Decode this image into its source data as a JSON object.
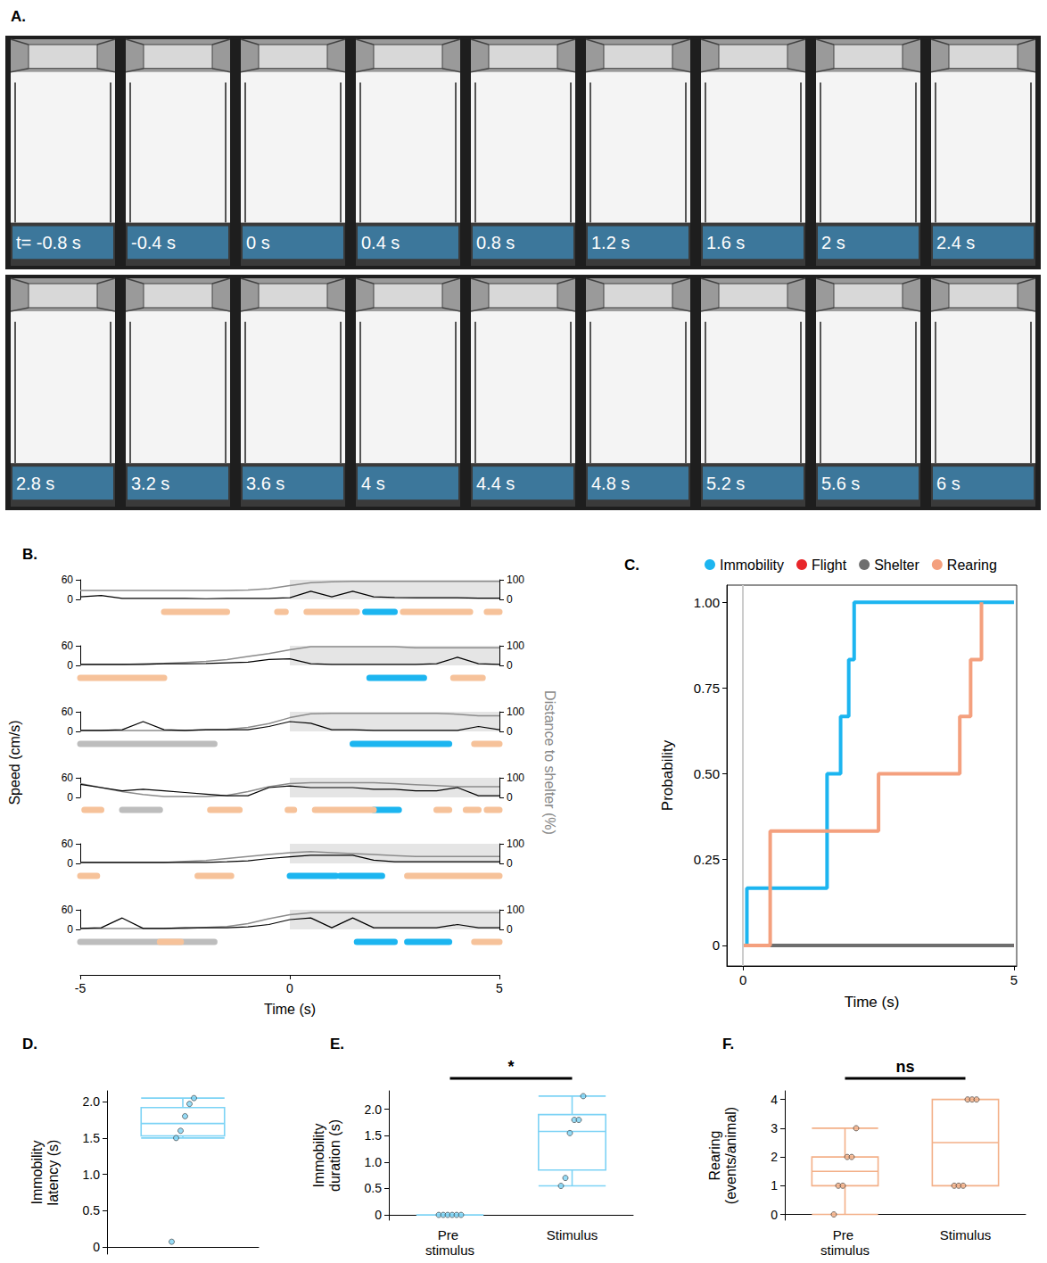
{
  "panel_a": {
    "title": "A.",
    "frames": [
      "t= -0.8 s",
      "-0.4 s",
      "0 s",
      "0.4 s",
      "0.8 s",
      "1.2 s",
      "1.6 s",
      "2 s",
      "2.4 s",
      "2.8 s",
      "3.2 s",
      "3.6 s",
      "4 s",
      "4.4 s",
      "4.8 s",
      "5.2 s",
      "5.6 s",
      "6 s"
    ]
  },
  "chart_data": [
    {
      "type": "line",
      "title": "B.",
      "x_label": "Time (s)",
      "y_label": "Speed (cm/s)",
      "y2_label": "Distance to shelter (%)",
      "x": [
        -5,
        -4.5,
        -4,
        -3.5,
        -3,
        -2.5,
        -2,
        -1.5,
        -1,
        -0.5,
        0,
        0.5,
        1,
        1.5,
        2,
        2.5,
        3,
        3.5,
        4,
        4.5,
        5
      ],
      "xlim": [
        -5,
        5
      ],
      "xticks": [
        -5,
        0,
        5
      ],
      "ylim": [
        0,
        60
      ],
      "yticks": [
        0,
        60
      ],
      "y2lim": [
        0,
        100
      ],
      "y2ticks": [
        0,
        100
      ],
      "stimulus": [
        0,
        5
      ],
      "behaviors": [
        {
          "name": "Shelter",
          "color": "#bdbdbd"
        },
        {
          "name": "Immobility",
          "color": "#1cb5f0"
        },
        {
          "name": "Rearing",
          "color": "#f6c29a"
        }
      ],
      "rows": [
        {
          "series": [
            {
              "name": "Speed (cm/s)",
              "color": "#000000",
              "values": [
                8,
                12,
                3,
                3,
                3,
                3,
                2,
                3,
                3,
                3,
                5,
                25,
                8,
                25,
                8,
                6,
                5,
                5,
                5,
                4,
                4
              ]
            },
            {
              "name": "Distance to shelter (%)",
              "color": "#8c8c8c",
              "axis": "y2",
              "values": [
                45,
                45,
                45,
                45,
                45,
                45,
                45,
                46,
                48,
                55,
                70,
                85,
                90,
                92,
                92,
                92,
                92,
                92,
                92,
                92,
                92
              ]
            }
          ],
          "segments": [
            {
              "behavior": "Rearing",
              "start": -3,
              "end": -1.5
            },
            {
              "behavior": "Rearing",
              "start": -0.3,
              "end": -0.1
            },
            {
              "behavior": "Rearing",
              "start": 0.4,
              "end": 1.6
            },
            {
              "behavior": "Immobility",
              "start": 1.8,
              "end": 2.5
            },
            {
              "behavior": "Rearing",
              "start": 2.7,
              "end": 4.3
            },
            {
              "behavior": "Rearing",
              "start": 4.7,
              "end": 5
            }
          ]
        },
        {
          "series": [
            {
              "name": "Speed (cm/s)",
              "color": "#000000",
              "values": [
                3,
                3,
                3,
                3,
                5,
                5,
                6,
                8,
                10,
                18,
                20,
                5,
                3,
                3,
                3,
                3,
                3,
                5,
                25,
                5,
                3
              ]
            },
            {
              "name": "Distance to shelter (%)",
              "color": "#8c8c8c",
              "axis": "y2",
              "values": [
                5,
                5,
                5,
                8,
                10,
                15,
                20,
                30,
                45,
                60,
                80,
                95,
                95,
                95,
                95,
                95,
                90,
                90,
                90,
                90,
                90
              ]
            }
          ],
          "segments": [
            {
              "behavior": "Rearing",
              "start": -5,
              "end": -3
            },
            {
              "behavior": "Immobility",
              "start": 1.9,
              "end": 3.2
            },
            {
              "behavior": "Rearing",
              "start": 3.9,
              "end": 4.6
            }
          ]
        },
        {
          "series": [
            {
              "name": "Speed (cm/s)",
              "color": "#000000",
              "values": [
                3,
                3,
                5,
                30,
                5,
                3,
                5,
                5,
                5,
                15,
                30,
                25,
                5,
                5,
                3,
                3,
                3,
                3,
                3,
                15,
                5
              ]
            },
            {
              "name": "Distance to shelter (%)",
              "color": "#8c8c8c",
              "axis": "y2",
              "values": [
                5,
                5,
                5,
                5,
                5,
                5,
                8,
                10,
                20,
                40,
                70,
                90,
                92,
                92,
                92,
                92,
                92,
                92,
                88,
                80,
                80
              ]
            }
          ],
          "segments": [
            {
              "behavior": "Shelter",
              "start": -5,
              "end": -1.8
            },
            {
              "behavior": "Immobility",
              "start": 1.5,
              "end": 3.8
            },
            {
              "behavior": "Rearing",
              "start": 4.4,
              "end": 5
            }
          ]
        },
        {
          "series": [
            {
              "name": "Speed (cm/s)",
              "color": "#000000",
              "values": [
                40,
                30,
                20,
                25,
                20,
                15,
                10,
                5,
                5,
                30,
                35,
                30,
                30,
                30,
                25,
                25,
                20,
                20,
                30,
                5,
                5
              ]
            },
            {
              "name": "Distance to shelter (%)",
              "color": "#8c8c8c",
              "axis": "y2",
              "values": [
                70,
                50,
                30,
                15,
                5,
                5,
                5,
                10,
                30,
                55,
                70,
                75,
                75,
                75,
                75,
                70,
                65,
                60,
                55,
                55,
                55
              ]
            }
          ],
          "segments": [
            {
              "behavior": "Rearing",
              "start": -4.9,
              "end": -4.5
            },
            {
              "behavior": "Shelter",
              "start": -4,
              "end": -3.1
            },
            {
              "behavior": "Rearing",
              "start": -1.9,
              "end": -1.2
            },
            {
              "behavior": "Rearing",
              "start": -0.05,
              "end": 0.1
            },
            {
              "behavior": "Rearing",
              "start": 0.6,
              "end": 2
            },
            {
              "behavior": "Immobility",
              "start": 2,
              "end": 2.6
            },
            {
              "behavior": "Rearing",
              "start": 3.5,
              "end": 3.8
            },
            {
              "behavior": "Rearing",
              "start": 4.2,
              "end": 4.5
            },
            {
              "behavior": "Rearing",
              "start": 4.7,
              "end": 5
            }
          ]
        },
        {
          "series": [
            {
              "name": "Speed (cm/s)",
              "color": "#000000",
              "values": [
                3,
                3,
                3,
                3,
                3,
                3,
                3,
                5,
                8,
                15,
                20,
                25,
                25,
                25,
                10,
                5,
                5,
                5,
                5,
                5,
                5
              ]
            },
            {
              "name": "Distance to shelter (%)",
              "color": "#8c8c8c",
              "axis": "y2",
              "values": [
                5,
                5,
                5,
                5,
                5,
                10,
                15,
                25,
                35,
                45,
                55,
                60,
                55,
                50,
                45,
                40,
                35,
                35,
                35,
                35,
                35
              ]
            }
          ],
          "segments": [
            {
              "behavior": "Rearing",
              "start": -5,
              "end": -4.6
            },
            {
              "behavior": "Rearing",
              "start": -2.2,
              "end": -1.4
            },
            {
              "behavior": "Immobility",
              "start": 0,
              "end": 1.1
            },
            {
              "behavior": "Immobility",
              "start": 1.2,
              "end": 2.2
            },
            {
              "behavior": "Rearing",
              "start": 2.8,
              "end": 5
            }
          ]
        },
        {
          "series": [
            {
              "name": "Speed (cm/s)",
              "color": "#000000",
              "values": [
                3,
                5,
                35,
                3,
                3,
                5,
                5,
                5,
                8,
                15,
                30,
                35,
                5,
                35,
                5,
                5,
                5,
                5,
                15,
                5,
                5
              ]
            },
            {
              "name": "Distance to shelter (%)",
              "color": "#8c8c8c",
              "axis": "y2",
              "values": [
                5,
                5,
                5,
                5,
                5,
                5,
                10,
                15,
                30,
                55,
                75,
                85,
                85,
                85,
                85,
                85,
                85,
                85,
                85,
                85,
                85
              ]
            }
          ],
          "segments": [
            {
              "behavior": "Shelter",
              "start": -5,
              "end": -1.8
            },
            {
              "behavior": "Rearing",
              "start": -3.1,
              "end": -2.6
            },
            {
              "behavior": "Immobility",
              "start": 1.6,
              "end": 2.5
            },
            {
              "behavior": "Immobility",
              "start": 2.8,
              "end": 3.8
            },
            {
              "behavior": "Rearing",
              "start": 4.4,
              "end": 5
            }
          ]
        }
      ]
    },
    {
      "type": "step",
      "title": "C.",
      "x_label": "Time (s)",
      "y_label": "Probability",
      "xlim": [
        -0.3,
        5.05
      ],
      "xticks": [
        0,
        5
      ],
      "ylim": [
        -0.06,
        1.05
      ],
      "yticks": [
        0,
        0.25,
        {
          "value": 0.5,
          "label": "0.50"
        },
        0.75,
        {
          "value": 1,
          "label": "1.00"
        }
      ],
      "stimulus_onset": 0,
      "legend": "top",
      "series": [
        {
          "name": "Immobility",
          "color": "#1cb5f0",
          "x": [
            0,
            0.07,
            1.55,
            1.8,
            1.95,
            2.05,
            5
          ],
          "values": [
            0,
            0.167,
            0.5,
            0.667,
            0.833,
            1,
            1
          ]
        },
        {
          "name": "Flight",
          "color": "#e8262a",
          "x": [
            0,
            5
          ],
          "values": [
            0,
            0
          ]
        },
        {
          "name": "Shelter",
          "color": "#6e6e6e",
          "x": [
            0,
            5
          ],
          "values": [
            0,
            0
          ]
        },
        {
          "name": "Rearing",
          "color": "#f4a07e",
          "x": [
            0,
            0.5,
            2.5,
            4,
            4.2,
            4.4
          ],
          "values": [
            0,
            0.333,
            0.5,
            0.667,
            0.833,
            1
          ]
        }
      ]
    },
    {
      "type": "box",
      "title": "D.",
      "y_label": "Immobility latency (s)",
      "categories": [
        null
      ],
      "tick_labels": "y",
      "ylim": [
        -0.1,
        2.15
      ],
      "yticks": [
        0,
        0.5,
        {
          "value": 1,
          "label": "1.0"
        },
        1.5,
        {
          "value": 2,
          "label": "2.0"
        }
      ],
      "color": "#7dd3f5",
      "boxes": [
        [
          1.5,
          1.53,
          1.7,
          1.92,
          2.05
        ]
      ],
      "points": [
        [
          0.07,
          1.5,
          1.6,
          1.8,
          1.97,
          2.05
        ]
      ]
    },
    {
      "type": "box",
      "title": "E.",
      "y_label": "Immobility duration (s)",
      "categories": [
        "Pre stimulus",
        "Stimulus"
      ],
      "ylim": [
        -0.1,
        2.35
      ],
      "yticks": [
        0,
        0.5,
        {
          "value": 1,
          "label": "1.0"
        },
        1.5,
        {
          "value": 2,
          "label": "2.0"
        }
      ],
      "color": "#7dd3f5",
      "annotation": "*",
      "boxes": [
        [
          0,
          0,
          0,
          0,
          0
        ],
        [
          0.55,
          0.85,
          1.58,
          1.9,
          2.25
        ]
      ],
      "points": [
        [
          0,
          0,
          0,
          0,
          0,
          0
        ],
        [
          0.55,
          0.7,
          1.55,
          1.8,
          1.8,
          2.25
        ]
      ]
    },
    {
      "type": "box",
      "title": "F.",
      "y_label": "Rearing (events/animal)",
      "categories": [
        "Pre stimulus",
        "Stimulus"
      ],
      "ylim": [
        -0.2,
        4.3
      ],
      "yticks": [
        0,
        1,
        2,
        3,
        4
      ],
      "color": "#f3b088",
      "annotation": "ns",
      "boxes": [
        [
          0,
          1,
          1.5,
          2,
          3
        ],
        [
          1,
          1,
          2.5,
          4,
          4
        ]
      ],
      "points": [
        [
          0,
          1,
          1,
          2,
          2,
          3
        ],
        [
          1,
          1,
          1,
          4,
          4,
          4
        ]
      ]
    }
  ]
}
